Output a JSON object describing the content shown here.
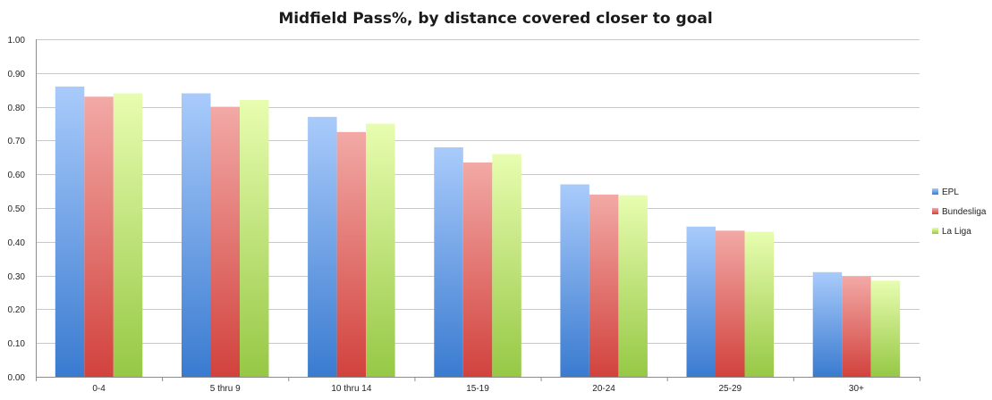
{
  "chart_data": {
    "type": "bar",
    "title": "Midfield Pass%, by distance covered closer to goal",
    "xlabel": "",
    "ylabel": "",
    "ylim": [
      0,
      1.0
    ],
    "yticks": [
      "0.00",
      "0.10",
      "0.20",
      "0.30",
      "0.40",
      "0.50",
      "0.60",
      "0.70",
      "0.80",
      "0.90",
      "1.00"
    ],
    "grid": true,
    "legend_position": "right",
    "categories": [
      "0-4",
      "5 thru 9",
      "10 thru 14",
      "15-19",
      "20-24",
      "25-29",
      "30+"
    ],
    "series": [
      {
        "name": "EPL",
        "color_top": "#a9cbfb",
        "color_bottom": "#3a7bd0",
        "values": [
          0.86,
          0.84,
          0.77,
          0.68,
          0.57,
          0.445,
          0.31
        ]
      },
      {
        "name": "Bundesliga",
        "color_top": "#f2a9a6",
        "color_bottom": "#d2423d",
        "values": [
          0.83,
          0.8,
          0.725,
          0.635,
          0.54,
          0.433,
          0.297
        ]
      },
      {
        "name": "La Liga",
        "color_top": "#e8fdb0",
        "color_bottom": "#96c845",
        "values": [
          0.84,
          0.82,
          0.75,
          0.66,
          0.538,
          0.43,
          0.285
        ]
      }
    ]
  }
}
